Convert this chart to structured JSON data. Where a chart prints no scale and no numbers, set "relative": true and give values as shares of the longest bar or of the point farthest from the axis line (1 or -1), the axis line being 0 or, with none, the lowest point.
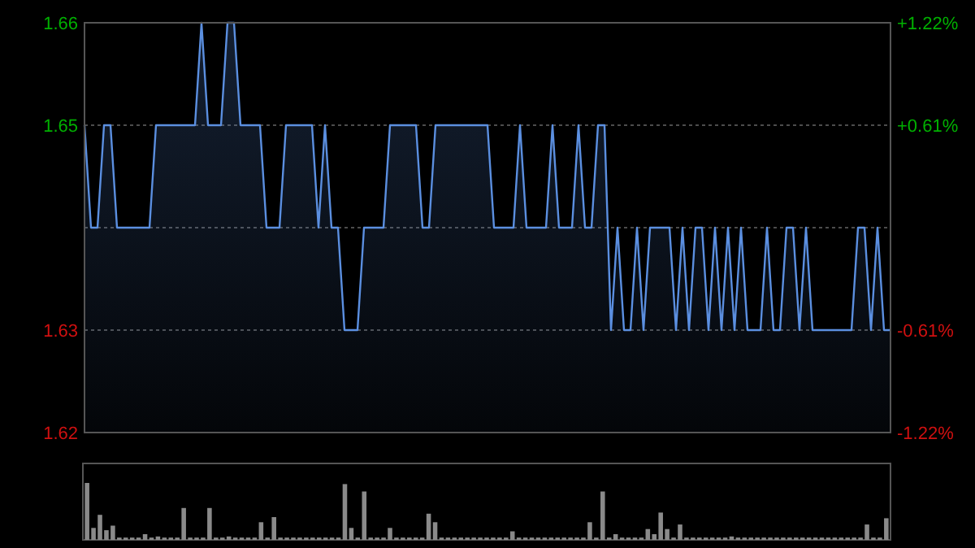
{
  "chart_data": [
    {
      "type": "area",
      "categories": [
        null,
        null,
        null,
        null,
        null,
        null,
        null,
        null,
        null,
        null,
        null,
        null,
        null,
        null,
        null,
        null,
        null,
        null,
        null,
        null,
        null,
        null,
        null,
        null,
        null,
        null,
        null,
        null,
        null,
        null,
        null,
        null,
        null,
        null,
        null,
        null,
        null,
        null,
        null,
        null,
        null,
        null,
        null,
        null,
        null,
        null,
        null,
        null,
        null,
        null,
        null,
        null,
        null,
        null,
        null,
        null,
        null,
        null,
        null,
        null,
        null,
        null,
        null,
        null,
        null,
        null,
        null,
        null,
        null,
        null,
        null,
        null,
        null,
        null,
        null,
        null,
        null,
        null,
        null,
        null,
        null,
        null,
        null,
        null,
        null,
        null,
        null,
        null,
        null,
        null,
        null,
        null,
        null,
        null,
        null,
        null,
        null,
        null,
        null,
        null,
        null,
        null,
        null,
        null,
        null,
        null,
        null,
        null,
        null,
        null,
        null,
        null,
        null,
        null,
        null,
        null,
        null,
        null,
        null,
        null,
        null,
        null,
        null,
        null,
        null
      ],
      "series": [
        {
          "color": "#5b8fe0",
          "values": [
            1.65,
            1.64,
            1.64,
            1.65,
            1.65,
            1.64,
            1.64,
            1.64,
            1.64,
            1.64,
            1.64,
            1.65,
            1.65,
            1.65,
            1.65,
            1.65,
            1.65,
            1.65,
            1.66,
            1.65,
            1.65,
            1.65,
            1.66,
            1.66,
            1.65,
            1.65,
            1.65,
            1.65,
            1.64,
            1.64,
            1.64,
            1.65,
            1.65,
            1.65,
            1.65,
            1.65,
            1.64,
            1.65,
            1.64,
            1.64,
            1.63,
            1.63,
            1.63,
            1.64,
            1.64,
            1.64,
            1.64,
            1.65,
            1.65,
            1.65,
            1.65,
            1.65,
            1.64,
            1.64,
            1.65,
            1.65,
            1.65,
            1.65,
            1.65,
            1.65,
            1.65,
            1.65,
            1.65,
            1.64,
            1.64,
            1.64,
            1.64,
            1.65,
            1.64,
            1.64,
            1.64,
            1.64,
            1.65,
            1.64,
            1.64,
            1.64,
            1.65,
            1.64,
            1.64,
            1.65,
            1.65,
            1.63,
            1.64,
            1.63,
            1.63,
            1.64,
            1.63,
            1.64,
            1.64,
            1.64,
            1.64,
            1.63,
            1.64,
            1.63,
            1.64,
            1.64,
            1.63,
            1.64,
            1.63,
            1.64,
            1.63,
            1.64,
            1.63,
            1.63,
            1.63,
            1.64,
            1.63,
            1.63,
            1.64,
            1.64,
            1.63,
            1.64,
            1.63,
            1.63,
            1.63,
            1.63,
            1.63,
            1.63,
            1.63,
            1.64,
            1.64,
            1.63,
            1.64,
            1.63,
            1.63
          ]
        }
      ],
      "ylim": [
        1.62,
        1.66
      ],
      "yticks": [
        1.62,
        1.63,
        {
          "value": 1.64,
          "label": null
        },
        1.65,
        1.66
      ],
      "y2lim": [
        -1.22,
        1.22
      ],
      "y2ticks": [
        {
          "value": -1.22,
          "label": "-1.22%"
        },
        {
          "value": -0.61,
          "label": "-0.61%"
        },
        {
          "value": 0.61,
          "label": "+0.61%"
        },
        {
          "value": 1.22,
          "label": "+1.22%"
        }
      ],
      "grid": "y"
    },
    {
      "type": "bar",
      "relative": true,
      "categories": [
        null,
        null,
        null,
        null,
        null,
        null,
        null,
        null,
        null,
        null,
        null,
        null,
        null,
        null,
        null,
        null,
        null,
        null,
        null,
        null,
        null,
        null,
        null,
        null,
        null,
        null,
        null,
        null,
        null,
        null,
        null,
        null,
        null,
        null,
        null,
        null,
        null,
        null,
        null,
        null,
        null,
        null,
        null,
        null,
        null,
        null,
        null,
        null,
        null,
        null,
        null,
        null,
        null,
        null,
        null,
        null,
        null,
        null,
        null,
        null,
        null,
        null,
        null,
        null,
        null,
        null,
        null,
        null,
        null,
        null,
        null,
        null,
        null,
        null,
        null,
        null,
        null,
        null,
        null,
        null,
        null,
        null,
        null,
        null,
        null,
        null,
        null,
        null,
        null,
        null,
        null,
        null,
        null,
        null,
        null,
        null,
        null,
        null,
        null,
        null,
        null,
        null,
        null,
        null,
        null,
        null,
        null,
        null,
        null,
        null,
        null,
        null,
        null,
        null,
        null,
        null,
        null,
        null,
        null,
        null,
        null,
        null,
        null,
        null,
        null
      ],
      "color": "#8a8a8a",
      "values": [
        1,
        0.21,
        0.44,
        0.17,
        0.25,
        0.04,
        0.04,
        0.04,
        0.04,
        0.1,
        0.04,
        0.06,
        0.04,
        0.04,
        0.04,
        0.56,
        0.04,
        0.04,
        0.04,
        0.56,
        0.04,
        0.04,
        0.06,
        0.04,
        0.04,
        0.04,
        0.04,
        0.31,
        0.04,
        0.4,
        0.04,
        0.04,
        0.04,
        0.04,
        0.04,
        0.04,
        0.04,
        0.04,
        0.04,
        0.04,
        0.98,
        0.21,
        0.04,
        0.85,
        0.04,
        0.04,
        0.04,
        0.21,
        0.04,
        0.04,
        0.04,
        0.04,
        0.04,
        0.46,
        0.31,
        0.04,
        0.04,
        0.04,
        0.04,
        0.04,
        0.04,
        0.04,
        0.04,
        0.04,
        0.04,
        0.04,
        0.15,
        0.04,
        0.04,
        0.04,
        0.04,
        0.04,
        0.04,
        0.04,
        0.04,
        0.04,
        0.04,
        0.04,
        0.31,
        0.04,
        0.85,
        0.04,
        0.1,
        0.04,
        0.04,
        0.04,
        0.04,
        0.19,
        0.1,
        0.48,
        0.19,
        0.04,
        0.27,
        0.04,
        0.04,
        0.04,
        0.04,
        0.04,
        0.04,
        0.04,
        0.06,
        0.04,
        0.04,
        0.04,
        0.04,
        0.04,
        0.04,
        0.04,
        0.04,
        0.04,
        0.04,
        0.04,
        0.04,
        0.04,
        0.04,
        0.04,
        0.04,
        0.04,
        0.04,
        0.04,
        0.04,
        0.27,
        0.04,
        0.04,
        0.38
      ]
    }
  ]
}
